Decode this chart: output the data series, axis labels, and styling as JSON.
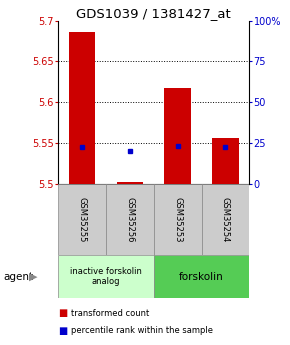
{
  "title": "GDS1039 / 1381427_at",
  "samples": [
    "GSM35255",
    "GSM35256",
    "GSM35253",
    "GSM35254"
  ],
  "red_values": [
    5.686,
    5.502,
    5.618,
    5.556
  ],
  "red_bottoms": [
    5.5,
    5.5,
    5.5,
    5.5
  ],
  "blue_values": [
    5.545,
    5.54,
    5.546,
    5.545
  ],
  "ylim_left": [
    5.5,
    5.7
  ],
  "yticks_left": [
    5.5,
    5.55,
    5.6,
    5.65,
    5.7
  ],
  "yticks_right": [
    0,
    25,
    50,
    75,
    100
  ],
  "yticks_right_labels": [
    "0",
    "25",
    "50",
    "75",
    "100%"
  ],
  "grid_values": [
    5.55,
    5.6,
    5.65
  ],
  "bar_width": 0.55,
  "bar_color": "#cc0000",
  "dot_color": "#0000cc",
  "group1_label": "inactive forskolin\nanalog",
  "group1_color": "#ccffcc",
  "group2_label": "forskolin",
  "group2_color": "#55cc55",
  "agent_label": "agent",
  "legend_red": "transformed count",
  "legend_blue": "percentile rank within the sample",
  "sample_box_color": "#cccccc",
  "title_fontsize": 9.5,
  "tick_fontsize": 7,
  "legend_fontsize": 6.5
}
